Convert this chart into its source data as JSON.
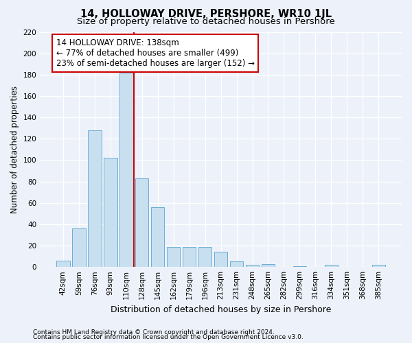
{
  "title": "14, HOLLOWAY DRIVE, PERSHORE, WR10 1JL",
  "subtitle": "Size of property relative to detached houses in Pershore",
  "xlabel": "Distribution of detached houses by size in Pershore",
  "ylabel": "Number of detached properties",
  "bin_labels": [
    "42sqm",
    "59sqm",
    "76sqm",
    "93sqm",
    "110sqm",
    "128sqm",
    "145sqm",
    "162sqm",
    "179sqm",
    "196sqm",
    "213sqm",
    "231sqm",
    "248sqm",
    "265sqm",
    "282sqm",
    "299sqm",
    "316sqm",
    "334sqm",
    "351sqm",
    "368sqm",
    "385sqm"
  ],
  "bar_heights": [
    6,
    36,
    128,
    102,
    182,
    83,
    56,
    19,
    19,
    19,
    14,
    5,
    2,
    3,
    0,
    1,
    0,
    2,
    0,
    0,
    2
  ],
  "bar_color": "#c8dff0",
  "bar_edge_color": "#6aaed6",
  "vline_position": 4.5,
  "vline_color": "#cc0000",
  "annotation_text": "14 HOLLOWAY DRIVE: 138sqm\n← 77% of detached houses are smaller (499)\n23% of semi-detached houses are larger (152) →",
  "annotation_box_facecolor": "#ffffff",
  "annotation_box_edgecolor": "#cc0000",
  "ylim": [
    0,
    220
  ],
  "yticks": [
    0,
    20,
    40,
    60,
    80,
    100,
    120,
    140,
    160,
    180,
    200,
    220
  ],
  "footer_line1": "Contains HM Land Registry data © Crown copyright and database right 2024.",
  "footer_line2": "Contains public sector information licensed under the Open Government Licence v3.0.",
  "bg_color": "#edf2fa",
  "grid_color": "#ffffff",
  "title_fontsize": 10.5,
  "subtitle_fontsize": 9.5,
  "ylabel_fontsize": 8.5,
  "xlabel_fontsize": 9,
  "tick_fontsize": 7.5,
  "annotation_fontsize": 8.5,
  "footer_fontsize": 6.5
}
